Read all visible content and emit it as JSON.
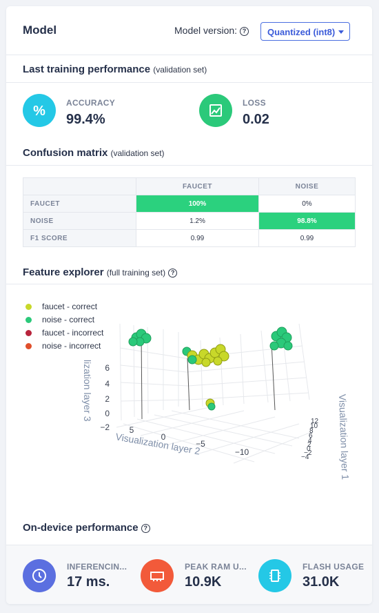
{
  "header": {
    "title": "Model",
    "version_label": "Model version:",
    "version_selected": "Quantized (int8)"
  },
  "training": {
    "title": "Last training performance",
    "subtitle": "(validation set)",
    "accuracy": {
      "label": "ACCURACY",
      "value": "99.4%",
      "icon": "percent-icon",
      "color": "#24c8e6"
    },
    "loss": {
      "label": "LOSS",
      "value": "0.02",
      "icon": "chart-icon",
      "color": "#2bc97a"
    }
  },
  "confusion": {
    "title": "Confusion matrix",
    "subtitle": "(validation set)",
    "columns": [
      "FAUCET",
      "NOISE"
    ],
    "rows": [
      {
        "label": "FAUCET",
        "cells": [
          "100%",
          "0%"
        ],
        "highlight": [
          true,
          false
        ]
      },
      {
        "label": "NOISE",
        "cells": [
          "1.2%",
          "98.8%"
        ],
        "highlight": [
          false,
          true
        ]
      },
      {
        "label": "F1 SCORE",
        "cells": [
          "0.99",
          "0.99"
        ],
        "highlight": [
          false,
          false
        ]
      }
    ],
    "highlight_color": "#2bd17e"
  },
  "explorer": {
    "title": "Feature explorer",
    "subtitle": "(full training set)",
    "legend": [
      {
        "label": "faucet - correct",
        "color": "#c8d82a"
      },
      {
        "label": "noise - correct",
        "color": "#2bc97a"
      },
      {
        "label": "faucet - incorrect",
        "color": "#b8243c"
      },
      {
        "label": "noise - incorrect",
        "color": "#e0502c"
      }
    ],
    "axes": {
      "x_title": "Visualization layer 2",
      "y_title": "Visualization layer 1",
      "z_title": "lization layer 3",
      "x_ticks": [
        "5",
        "0",
        "−5",
        "−10"
      ],
      "y_ticks": [
        "12",
        "10",
        "8",
        "6",
        "4",
        "2",
        "0",
        "−2",
        "−4"
      ],
      "z_ticks": [
        "6",
        "4",
        "2",
        "0",
        "−2"
      ]
    }
  },
  "ondevice": {
    "title": "On-device performance",
    "items": [
      {
        "label": "INFERENCIN...",
        "value": "17 ms.",
        "icon": "clock-icon",
        "color": "#5b6fe0"
      },
      {
        "label": "PEAK RAM U...",
        "value": "10.9K",
        "icon": "ram-icon",
        "color": "#f25a3a"
      },
      {
        "label": "FLASH USAGE",
        "value": "31.0K",
        "icon": "chip-icon",
        "color": "#24c8e6"
      }
    ]
  }
}
